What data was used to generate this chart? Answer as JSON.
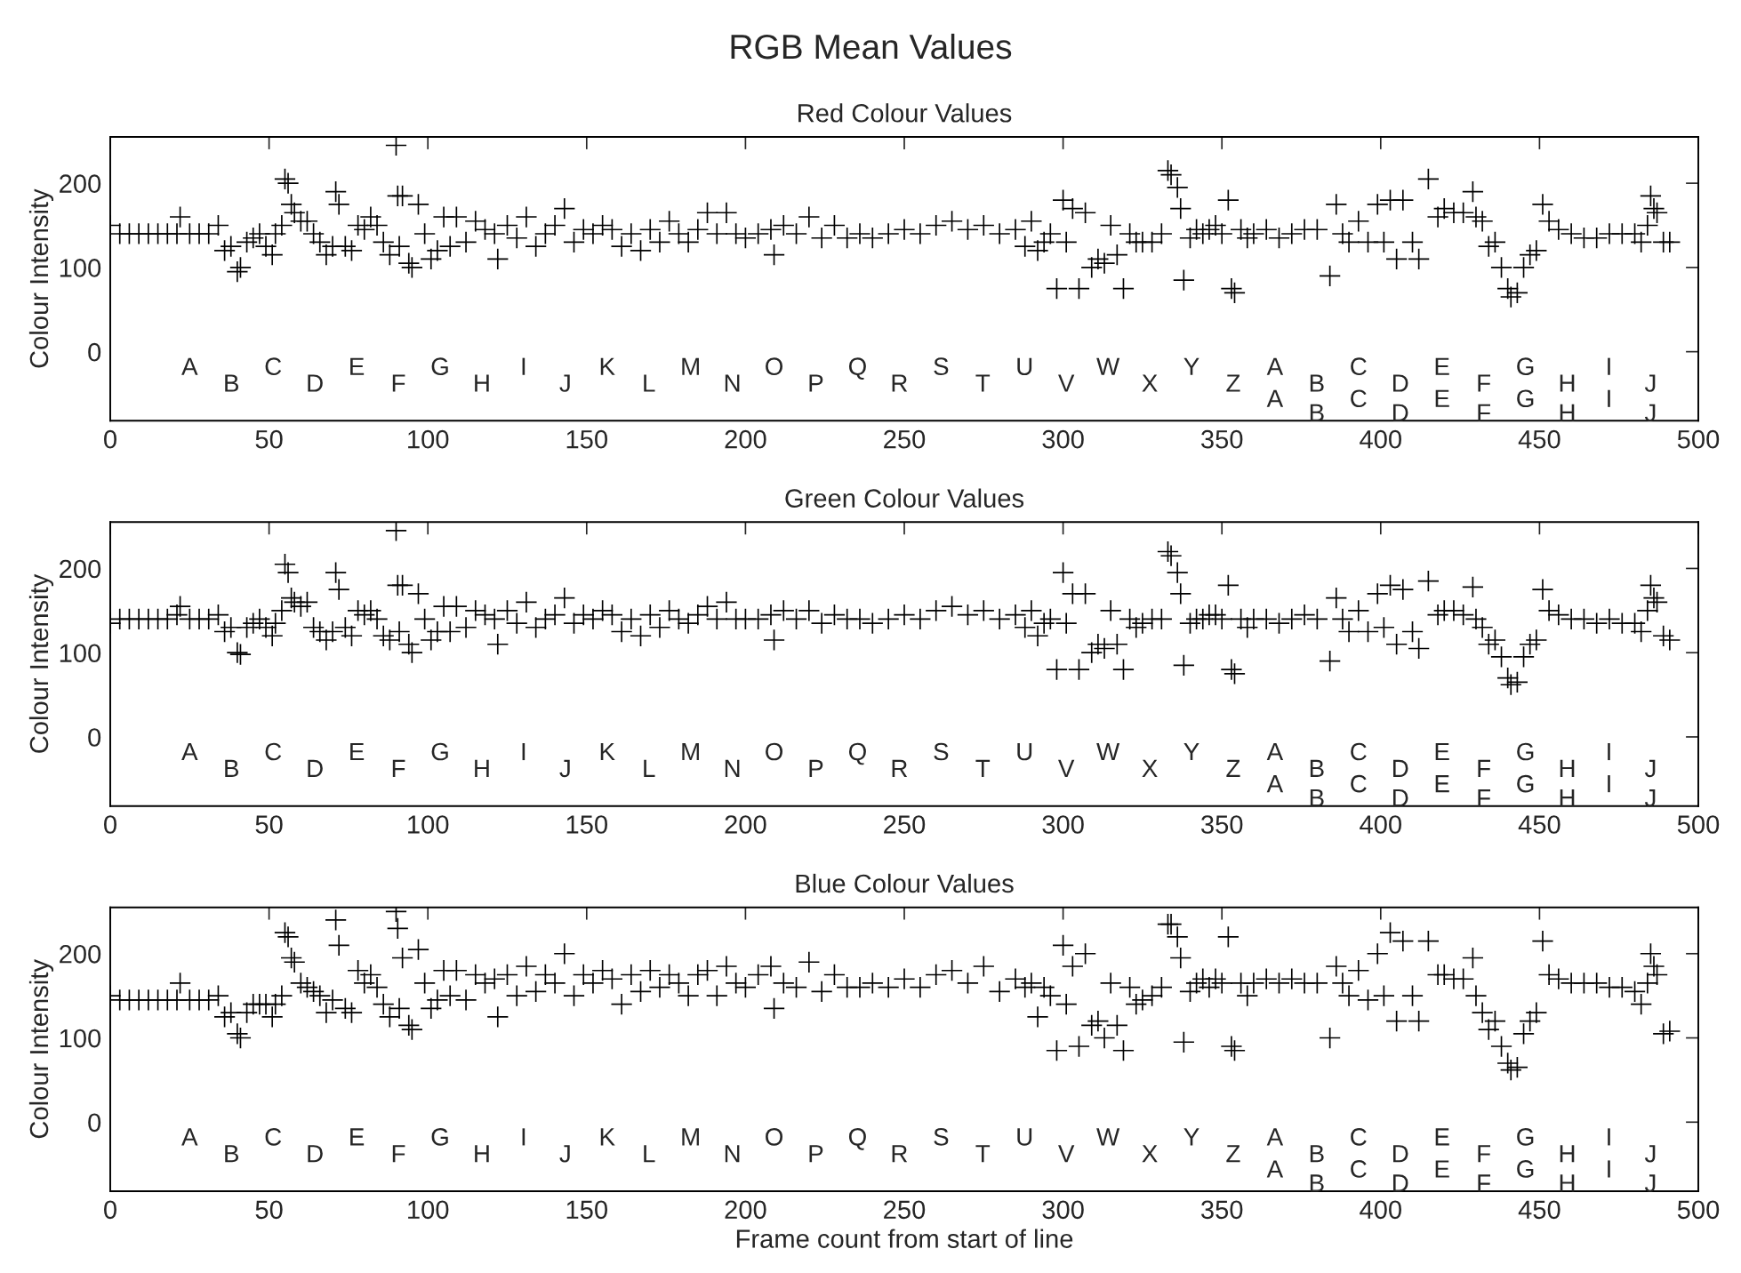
{
  "chart_data": [
    {
      "type": "scatter",
      "title": "RGB Mean Values",
      "subtitle": "Red Colour Values",
      "ylabel": "Colour Intensity",
      "xlim": [
        0,
        500
      ],
      "ylim": [
        -82,
        255
      ],
      "xticks": [
        0,
        50,
        100,
        150,
        200,
        250,
        300,
        350,
        400,
        450,
        500
      ],
      "yticks": [
        0,
        100,
        200
      ],
      "marker": "cross",
      "annotations": [
        "A",
        "B",
        "C",
        "D",
        "E",
        "F",
        "G",
        "H",
        "I",
        "J",
        "K",
        "L",
        "M",
        "N",
        "O",
        "P",
        "Q",
        "R",
        "S",
        "T",
        "U",
        "V",
        "W",
        "X",
        "Y",
        "Z",
        "A",
        "A",
        "B",
        "B",
        "C",
        "C",
        "D",
        "D",
        "E",
        "E",
        "F",
        "F",
        "G",
        "G",
        "H",
        "H",
        "I",
        "I",
        "J",
        "J"
      ],
      "series": [
        {
          "color": "#000000",
          "x": [
            0,
            3,
            6,
            9,
            12,
            15,
            18,
            21,
            22,
            25,
            28,
            31,
            34,
            36,
            38,
            40,
            41,
            43,
            45,
            47,
            49,
            51,
            52,
            54,
            55,
            56,
            57,
            58,
            60,
            62,
            64,
            66,
            68,
            70,
            71,
            72,
            74,
            76,
            78,
            80,
            82,
            84,
            86,
            88,
            90,
            90.5,
            91,
            92,
            94,
            95,
            97,
            99,
            101,
            103,
            105,
            107,
            109,
            112,
            115,
            118,
            121,
            122,
            125,
            128,
            131,
            134,
            137,
            140,
            143,
            146,
            149,
            152,
            155,
            158,
            161,
            164,
            167,
            170,
            173,
            176,
            179,
            182,
            185,
            188,
            191,
            194,
            197,
            200,
            204,
            208,
            209,
            212,
            216,
            220,
            224,
            228,
            232,
            236,
            240,
            245,
            250,
            255,
            260,
            265,
            270,
            275,
            280,
            285,
            288,
            290,
            292,
            294,
            296,
            298,
            300,
            301,
            303,
            305,
            307,
            309,
            311,
            313,
            315,
            317,
            319,
            321,
            323,
            325,
            328,
            331,
            333,
            334,
            336,
            337,
            338,
            340,
            342,
            344,
            346,
            348,
            350,
            352,
            353,
            354,
            356,
            358,
            360,
            364,
            368,
            372,
            376,
            380,
            384,
            386,
            388,
            390,
            393,
            396,
            399,
            401,
            403,
            405,
            407,
            410,
            412,
            415,
            418,
            420,
            423,
            426,
            429,
            430,
            432,
            434,
            436,
            438,
            440,
            441,
            443,
            445,
            447,
            449,
            451,
            453,
            456,
            460,
            464,
            468,
            472,
            476,
            480,
            482,
            484,
            485,
            486,
            487,
            489,
            491
          ],
          "values": [
            150,
            140,
            140,
            140,
            140,
            140,
            140,
            140,
            160,
            140,
            140,
            140,
            150,
            120,
            125,
            95,
            100,
            130,
            135,
            140,
            125,
            115,
            140,
            150,
            205,
            200,
            175,
            165,
            155,
            155,
            140,
            130,
            115,
            125,
            190,
            175,
            125,
            120,
            150,
            145,
            160,
            150,
            130,
            115,
            245,
            185,
            125,
            185,
            105,
            100,
            175,
            140,
            110,
            120,
            160,
            125,
            160,
            130,
            155,
            145,
            140,
            110,
            150,
            135,
            160,
            125,
            140,
            150,
            170,
            130,
            145,
            140,
            150,
            145,
            125,
            140,
            120,
            145,
            130,
            155,
            140,
            130,
            145,
            165,
            140,
            165,
            140,
            135,
            140,
            145,
            115,
            150,
            140,
            160,
            135,
            150,
            135,
            140,
            135,
            140,
            145,
            140,
            150,
            155,
            145,
            150,
            140,
            145,
            125,
            155,
            120,
            130,
            140,
            75,
            180,
            130,
            170,
            75,
            165,
            100,
            110,
            105,
            150,
            115,
            75,
            140,
            130,
            130,
            130,
            140,
            215,
            210,
            195,
            170,
            85,
            135,
            145,
            140,
            145,
            150,
            140,
            180,
            75,
            70,
            145,
            135,
            140,
            145,
            135,
            140,
            145,
            145,
            90,
            175,
            140,
            130,
            155,
            130,
            175,
            130,
            180,
            110,
            180,
            130,
            110,
            205,
            160,
            170,
            165,
            165,
            190,
            160,
            155,
            125,
            130,
            100,
            75,
            65,
            70,
            100,
            115,
            120,
            175,
            155,
            145,
            140,
            135,
            135,
            140,
            140,
            140,
            130,
            150,
            185,
            170,
            165,
            130,
            130
          ]
        }
      ]
    },
    {
      "type": "scatter",
      "title": "Green Colour Values",
      "ylabel": "Colour Intensity",
      "xlim": [
        0,
        500
      ],
      "ylim": [
        -82,
        255
      ],
      "xticks": [
        0,
        50,
        100,
        150,
        200,
        250,
        300,
        350,
        400,
        450,
        500
      ],
      "yticks": [
        0,
        100,
        200
      ],
      "marker": "cross",
      "annotations": [
        "A",
        "B",
        "C",
        "D",
        "E",
        "F",
        "G",
        "H",
        "I",
        "J",
        "K",
        "L",
        "M",
        "N",
        "O",
        "P",
        "Q",
        "R",
        "S",
        "T",
        "U",
        "V",
        "W",
        "X",
        "Y",
        "Z",
        "A",
        "A",
        "B",
        "B",
        "C",
        "C",
        "D",
        "D",
        "E",
        "E",
        "F",
        "F",
        "G",
        "G",
        "H",
        "H",
        "I",
        "I",
        "J",
        "J"
      ],
      "series": [
        {
          "color": "#000000",
          "x": [
            0,
            3,
            6,
            9,
            12,
            15,
            18,
            21,
            22,
            25,
            28,
            31,
            34,
            36,
            38,
            40,
            41,
            43,
            45,
            47,
            49,
            51,
            52,
            54,
            55,
            56,
            57,
            58,
            60,
            62,
            64,
            66,
            68,
            70,
            71,
            72,
            74,
            76,
            78,
            80,
            82,
            84,
            86,
            88,
            90,
            90.5,
            91,
            92,
            94,
            95,
            97,
            99,
            101,
            103,
            105,
            107,
            109,
            112,
            115,
            118,
            121,
            122,
            125,
            128,
            131,
            134,
            137,
            140,
            143,
            146,
            149,
            152,
            155,
            158,
            161,
            164,
            167,
            170,
            173,
            176,
            179,
            182,
            185,
            188,
            191,
            194,
            197,
            200,
            204,
            208,
            209,
            212,
            216,
            220,
            224,
            228,
            232,
            236,
            240,
            245,
            250,
            255,
            260,
            265,
            270,
            275,
            280,
            285,
            288,
            290,
            292,
            294,
            296,
            298,
            300,
            301,
            303,
            305,
            307,
            309,
            311,
            313,
            315,
            317,
            319,
            321,
            323,
            325,
            328,
            331,
            333,
            334,
            336,
            337,
            338,
            340,
            342,
            344,
            346,
            348,
            350,
            352,
            353,
            354,
            356,
            358,
            360,
            364,
            368,
            372,
            376,
            380,
            384,
            386,
            388,
            390,
            393,
            396,
            399,
            401,
            403,
            405,
            407,
            410,
            412,
            415,
            418,
            420,
            423,
            426,
            429,
            430,
            432,
            434,
            436,
            438,
            440,
            441,
            443,
            445,
            447,
            449,
            451,
            453,
            456,
            460,
            464,
            468,
            472,
            476,
            480,
            482,
            484,
            485,
            486,
            487,
            489,
            491
          ],
          "values": [
            135,
            140,
            140,
            140,
            140,
            140,
            140,
            145,
            155,
            140,
            140,
            140,
            145,
            125,
            130,
            100,
            98,
            130,
            135,
            140,
            130,
            120,
            135,
            150,
            205,
            195,
            165,
            160,
            155,
            160,
            130,
            125,
            115,
            125,
            195,
            175,
            130,
            120,
            150,
            145,
            150,
            140,
            120,
            115,
            245,
            180,
            125,
            180,
            110,
            100,
            170,
            140,
            115,
            125,
            155,
            125,
            155,
            130,
            150,
            145,
            140,
            110,
            150,
            135,
            160,
            130,
            140,
            145,
            165,
            135,
            145,
            140,
            150,
            145,
            125,
            140,
            120,
            145,
            130,
            150,
            140,
            135,
            145,
            155,
            140,
            160,
            140,
            140,
            140,
            145,
            115,
            150,
            140,
            150,
            135,
            145,
            140,
            140,
            135,
            140,
            145,
            140,
            150,
            155,
            145,
            150,
            140,
            145,
            130,
            150,
            120,
            135,
            140,
            80,
            195,
            135,
            170,
            80,
            170,
            100,
            110,
            105,
            150,
            110,
            80,
            140,
            130,
            135,
            140,
            140,
            220,
            215,
            195,
            170,
            85,
            135,
            140,
            140,
            145,
            145,
            140,
            180,
            80,
            75,
            140,
            130,
            140,
            140,
            135,
            140,
            145,
            140,
            90,
            165,
            140,
            125,
            150,
            125,
            170,
            130,
            180,
            110,
            175,
            125,
            105,
            185,
            145,
            150,
            150,
            145,
            178,
            140,
            130,
            110,
            115,
            95,
            70,
            62,
            65,
            95,
            110,
            115,
            175,
            150,
            145,
            140,
            140,
            135,
            140,
            135,
            135,
            125,
            150,
            180,
            165,
            160,
            120,
            115
          ]
        }
      ]
    },
    {
      "type": "scatter",
      "title": "Blue Colour Values",
      "xlabel": "Frame count from start of line",
      "ylabel": "Colour Intensity",
      "xlim": [
        0,
        500
      ],
      "ylim": [
        -82,
        255
      ],
      "xticks": [
        0,
        50,
        100,
        150,
        200,
        250,
        300,
        350,
        400,
        450,
        500
      ],
      "yticks": [
        0,
        100,
        200
      ],
      "marker": "cross",
      "annotations": [
        "A",
        "B",
        "C",
        "D",
        "E",
        "F",
        "G",
        "H",
        "I",
        "J",
        "K",
        "L",
        "M",
        "N",
        "O",
        "P",
        "Q",
        "R",
        "S",
        "T",
        "U",
        "V",
        "W",
        "X",
        "Y",
        "Z",
        "A",
        "A",
        "B",
        "B",
        "C",
        "C",
        "D",
        "D",
        "E",
        "E",
        "F",
        "F",
        "G",
        "G",
        "H",
        "H",
        "I",
        "I",
        "J",
        "J"
      ],
      "series": [
        {
          "color": "#000000",
          "x": [
            0,
            3,
            6,
            9,
            12,
            15,
            18,
            21,
            22,
            25,
            28,
            31,
            34,
            36,
            38,
            40,
            41,
            43,
            45,
            47,
            49,
            51,
            52,
            54,
            55,
            56,
            57,
            58,
            60,
            62,
            64,
            66,
            68,
            70,
            71,
            72,
            74,
            76,
            78,
            80,
            82,
            84,
            86,
            88,
            90,
            90.5,
            91,
            92,
            94,
            95,
            97,
            99,
            101,
            103,
            105,
            107,
            109,
            112,
            115,
            118,
            121,
            122,
            125,
            128,
            131,
            134,
            137,
            140,
            143,
            146,
            149,
            152,
            155,
            158,
            161,
            164,
            167,
            170,
            173,
            176,
            179,
            182,
            185,
            188,
            191,
            194,
            197,
            200,
            204,
            208,
            209,
            212,
            216,
            220,
            224,
            228,
            232,
            236,
            240,
            245,
            250,
            255,
            260,
            265,
            270,
            275,
            280,
            285,
            288,
            290,
            292,
            294,
            296,
            298,
            300,
            301,
            303,
            305,
            307,
            309,
            311,
            313,
            315,
            317,
            319,
            321,
            323,
            325,
            328,
            331,
            333,
            334,
            336,
            337,
            338,
            340,
            342,
            344,
            346,
            348,
            350,
            352,
            353,
            354,
            356,
            358,
            360,
            364,
            368,
            372,
            376,
            380,
            384,
            386,
            388,
            390,
            393,
            396,
            399,
            401,
            403,
            405,
            407,
            410,
            412,
            415,
            418,
            420,
            423,
            426,
            429,
            430,
            432,
            434,
            436,
            438,
            440,
            441,
            443,
            445,
            447,
            449,
            451,
            453,
            456,
            460,
            464,
            468,
            472,
            476,
            480,
            482,
            484,
            485,
            486,
            487,
            489,
            491
          ],
          "values": [
            150,
            145,
            145,
            145,
            145,
            145,
            145,
            145,
            165,
            145,
            145,
            145,
            150,
            125,
            130,
            105,
            100,
            130,
            140,
            140,
            140,
            125,
            140,
            150,
            225,
            220,
            195,
            190,
            165,
            160,
            155,
            150,
            130,
            145,
            240,
            210,
            135,
            130,
            180,
            165,
            175,
            160,
            140,
            125,
            250,
            230,
            135,
            195,
            115,
            110,
            205,
            165,
            135,
            145,
            180,
            150,
            180,
            145,
            175,
            165,
            170,
            125,
            175,
            150,
            185,
            155,
            175,
            165,
            200,
            150,
            175,
            165,
            180,
            170,
            140,
            175,
            155,
            180,
            160,
            175,
            165,
            150,
            175,
            180,
            150,
            185,
            165,
            160,
            175,
            185,
            135,
            165,
            160,
            190,
            155,
            175,
            160,
            160,
            165,
            160,
            170,
            160,
            175,
            180,
            165,
            185,
            155,
            170,
            160,
            165,
            125,
            160,
            150,
            85,
            210,
            140,
            185,
            90,
            200,
            115,
            120,
            100,
            165,
            115,
            85,
            160,
            140,
            145,
            150,
            160,
            235,
            235,
            220,
            195,
            95,
            155,
            165,
            170,
            160,
            170,
            165,
            220,
            90,
            85,
            165,
            150,
            165,
            170,
            165,
            170,
            165,
            165,
            100,
            185,
            165,
            150,
            180,
            145,
            200,
            150,
            225,
            120,
            215,
            150,
            120,
            215,
            175,
            175,
            170,
            170,
            195,
            150,
            130,
            110,
            120,
            90,
            70,
            62,
            65,
            105,
            120,
            130,
            215,
            175,
            170,
            165,
            165,
            165,
            160,
            160,
            155,
            140,
            165,
            200,
            185,
            175,
            105,
            108
          ]
        }
      ]
    }
  ]
}
